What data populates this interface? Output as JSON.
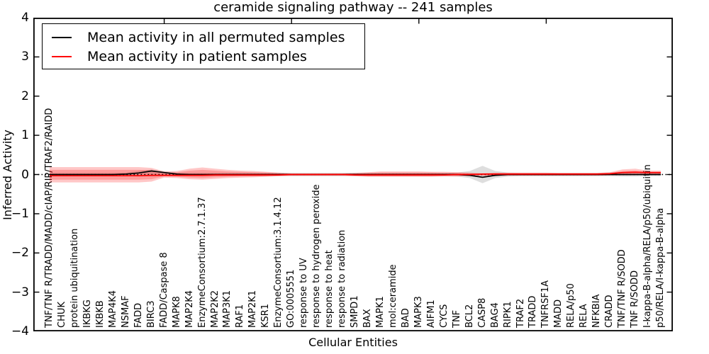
{
  "chart_data": {
    "type": "line",
    "title": "ceramide signaling pathway -- 241 samples",
    "xlabel": "Cellular Entities",
    "ylabel": "Inferred Activity",
    "ylim": [
      -4,
      4
    ],
    "grid": false,
    "legend_position": "upper left",
    "yticks": {
      "values": [
        4,
        3,
        2,
        1,
        0,
        -1,
        -2,
        -3,
        -4
      ],
      "labels": [
        "4",
        "3",
        "2",
        "1",
        "0",
        "−1",
        "−2",
        "−3",
        "−4"
      ]
    },
    "xtick_data_indices": [
      9,
      19,
      29,
      39
    ],
    "categories": [
      "TNF/TNF R/TRADD/MADD/cIAP/RIP/TRAF2/RAIDD",
      "CHUK",
      "protein ubiquitination",
      "IKBKG",
      "IKBKB",
      "MAP4K4",
      "NSMAF",
      "FADD",
      "BIRC3",
      "FADD/Caspase 8",
      "MAPK8",
      "MAP2K4",
      "EnzymeConsortium:2.7.1.37",
      "MAP2K2",
      "MAP3K1",
      "RAF1",
      "MAP2K1",
      "KSR1",
      "EnzymeConsortium:3.1.4.12",
      "GO:0005551",
      "response to UV",
      "response to hydrogen peroxide",
      "response to heat",
      "response to radiation",
      "SMPD1",
      "BAX",
      "MAPK1",
      "mol:ceramide",
      "BAD",
      "MAPK3",
      "AIFM1",
      "CYCS",
      "TNF",
      "BCL2",
      "CASP8",
      "BAG4",
      "RIPK1",
      "TRAF2",
      "TRADD",
      "TNFRSF1A",
      "MADD",
      "RELA/p50",
      "RELA",
      "NFKBIA",
      "CRADD",
      "TNF/TNF R/SODD",
      "TNF R/SODD",
      "I-kappa-B-alpha/RELA/p50/ubiquitin",
      "p50/RELA/I-kappa-B-alpha"
    ],
    "zero_line": true,
    "series": [
      {
        "name": "Mean activity in all permuted samples",
        "color": "#000000",
        "values": [
          0,
          0,
          0,
          0,
          0,
          0,
          0.01,
          0.04,
          0.09,
          0.05,
          0.01,
          0,
          0,
          0,
          0,
          0,
          0,
          0,
          0,
          0,
          0,
          0,
          0,
          0,
          0,
          0,
          0,
          0,
          0,
          0,
          0,
          0,
          0,
          -0.02,
          -0.07,
          -0.02,
          0,
          0,
          0,
          0,
          0,
          0,
          0,
          0,
          0,
          0,
          0,
          0,
          0
        ]
      },
      {
        "name": "Mean activity in patient samples",
        "color": "#ff0000",
        "values": [
          -0.03,
          -0.03,
          -0.03,
          -0.03,
          -0.03,
          -0.03,
          -0.03,
          -0.03,
          -0.02,
          -0.02,
          -0.02,
          -0.02,
          -0.02,
          -0.01,
          -0.01,
          -0.01,
          -0.01,
          -0.01,
          -0.01,
          0,
          0,
          0,
          0,
          0,
          -0.01,
          -0.01,
          -0.01,
          -0.01,
          -0.01,
          -0.01,
          -0.01,
          -0.01,
          0,
          0,
          0.01,
          0.01,
          0.01,
          0.01,
          0.01,
          0.01,
          0.01,
          0.01,
          0.01,
          0.01,
          0.02,
          0.05,
          0.06,
          0.05,
          0.05
        ]
      }
    ],
    "bands": [
      {
        "name": "permuted-band",
        "color": "#333333",
        "opacity": 0.16,
        "upper": [
          0.04,
          0.04,
          0.04,
          0.04,
          0.04,
          0.04,
          0.05,
          0.09,
          0.13,
          0.08,
          0.04,
          0.04,
          0.04,
          0.04,
          0.04,
          0.04,
          0.04,
          0.04,
          0.04,
          0.04,
          0.04,
          0.04,
          0.04,
          0.04,
          0.04,
          0.04,
          0.04,
          0.04,
          0.04,
          0.04,
          0.04,
          0.04,
          0.05,
          0.09,
          0.22,
          0.09,
          0.05,
          0.04,
          0.04,
          0.04,
          0.04,
          0.04,
          0.04,
          0.04,
          0.05,
          0.06,
          0.06,
          0.05,
          0.05
        ],
        "lower": [
          -0.04,
          -0.04,
          -0.04,
          -0.04,
          -0.04,
          -0.04,
          -0.04,
          -0.05,
          -0.05,
          -0.04,
          -0.04,
          -0.04,
          -0.04,
          -0.04,
          -0.04,
          -0.04,
          -0.04,
          -0.04,
          -0.04,
          -0.04,
          -0.04,
          -0.04,
          -0.04,
          -0.04,
          -0.04,
          -0.04,
          -0.04,
          -0.04,
          -0.04,
          -0.04,
          -0.04,
          -0.04,
          -0.05,
          -0.09,
          -0.22,
          -0.09,
          -0.05,
          -0.04,
          -0.04,
          -0.04,
          -0.04,
          -0.04,
          -0.04,
          -0.04,
          -0.04,
          -0.05,
          -0.05,
          -0.04,
          -0.04
        ]
      },
      {
        "name": "patient-band-outer",
        "color": "#ff0000",
        "opacity": 0.22,
        "upper": [
          0.19,
          0.19,
          0.19,
          0.19,
          0.19,
          0.19,
          0.19,
          0.19,
          0.17,
          0.08,
          0.09,
          0.15,
          0.18,
          0.15,
          0.12,
          0.1,
          0.09,
          0.07,
          0.05,
          0.03,
          0.03,
          0.03,
          0.03,
          0.03,
          0.04,
          0.06,
          0.08,
          0.08,
          0.08,
          0.08,
          0.07,
          0.07,
          0.06,
          0.05,
          0.03,
          0.05,
          0.05,
          0.05,
          0.05,
          0.05,
          0.04,
          0.04,
          0.04,
          0.04,
          0.06,
          0.13,
          0.15,
          0.1,
          0.1
        ],
        "lower": [
          -0.2,
          -0.2,
          -0.2,
          -0.2,
          -0.2,
          -0.2,
          -0.2,
          -0.2,
          -0.18,
          -0.08,
          -0.09,
          -0.12,
          -0.13,
          -0.11,
          -0.09,
          -0.08,
          -0.07,
          -0.06,
          -0.04,
          -0.03,
          -0.03,
          -0.03,
          -0.03,
          -0.03,
          -0.04,
          -0.06,
          -0.06,
          -0.06,
          -0.06,
          -0.06,
          -0.06,
          -0.05,
          -0.05,
          -0.04,
          -0.03,
          -0.04,
          -0.03,
          -0.03,
          -0.03,
          -0.03,
          -0.03,
          -0.03,
          -0.03,
          -0.03,
          -0.02,
          -0.02,
          -0.02,
          -0.01,
          -0.01
        ]
      },
      {
        "name": "patient-band-inner",
        "color": "#ff0000",
        "opacity": 0.22,
        "upper": [
          0.12,
          0.12,
          0.12,
          0.12,
          0.12,
          0.12,
          0.12,
          0.12,
          0.11,
          0.05,
          0.06,
          0.1,
          0.12,
          0.1,
          0.08,
          0.07,
          0.06,
          0.05,
          0.03,
          0.02,
          0.02,
          0.02,
          0.02,
          0.02,
          0.03,
          0.04,
          0.05,
          0.05,
          0.05,
          0.05,
          0.05,
          0.04,
          0.04,
          0.03,
          0.02,
          0.03,
          0.03,
          0.03,
          0.03,
          0.03,
          0.03,
          0.03,
          0.03,
          0.03,
          0.04,
          0.09,
          0.1,
          0.07,
          0.07
        ],
        "lower": [
          -0.13,
          -0.13,
          -0.13,
          -0.13,
          -0.13,
          -0.13,
          -0.13,
          -0.13,
          -0.12,
          -0.05,
          -0.06,
          -0.08,
          -0.09,
          -0.07,
          -0.06,
          -0.05,
          -0.05,
          -0.04,
          -0.03,
          -0.02,
          -0.02,
          -0.02,
          -0.02,
          -0.02,
          -0.03,
          -0.04,
          -0.04,
          -0.04,
          -0.04,
          -0.04,
          -0.04,
          -0.03,
          -0.03,
          -0.02,
          -0.02,
          -0.02,
          -0.02,
          -0.02,
          -0.02,
          -0.02,
          -0.02,
          -0.02,
          -0.02,
          -0.02,
          -0.01,
          -0.01,
          -0.01,
          0,
          0
        ]
      }
    ]
  }
}
